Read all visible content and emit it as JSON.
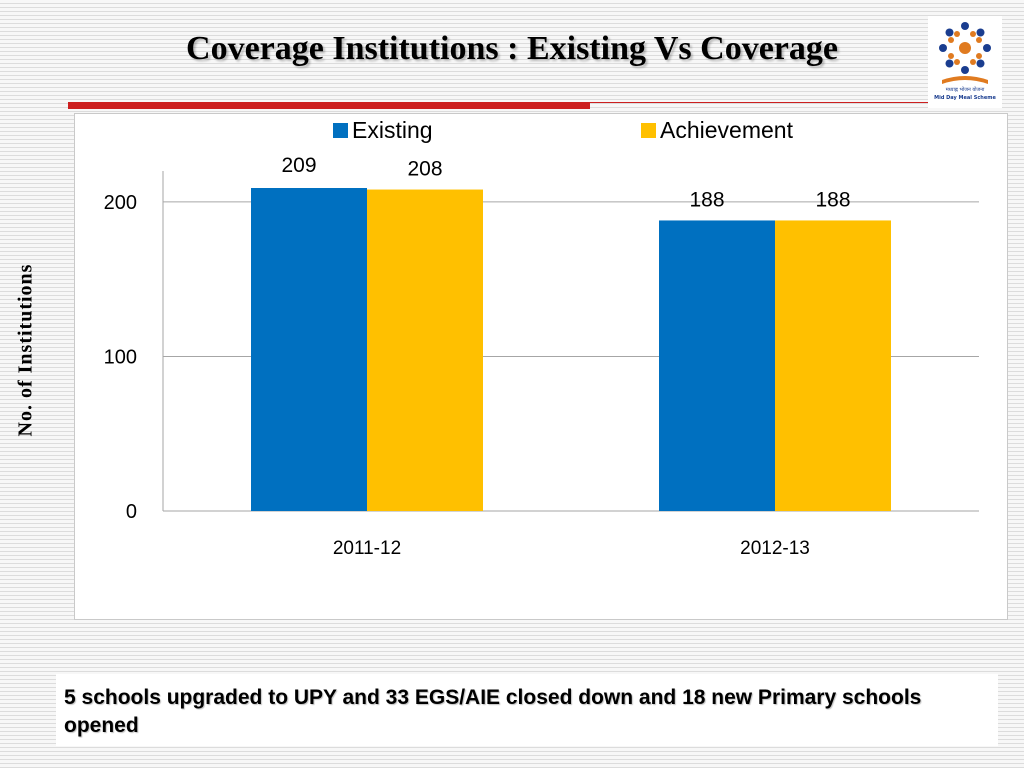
{
  "slide": {
    "title": "Coverage Institutions : Existing Vs Coverage",
    "note": "5 schools upgraded to UPY and 33 EGS/AIE closed down and 18 new Primary schools opened",
    "accent_color": "#cc1f1f"
  },
  "logo": {
    "line1": "मध्याह्न भोजन योजना",
    "line2": "Mid Day Meal Scheme"
  },
  "chart_data": {
    "type": "bar",
    "ylabel": "No. of Institutions",
    "xlabel": "",
    "title": "",
    "categories": [
      "2011-12",
      "2012-13"
    ],
    "series": [
      {
        "name": "Existing",
        "values": [
          209,
          188
        ],
        "color": "#0070c0"
      },
      {
        "name": "Achievement",
        "values": [
          208,
          188
        ],
        "color": "#ffc000"
      }
    ],
    "ylim": [
      0,
      220
    ],
    "yticks": [
      0,
      100,
      200
    ],
    "grid": true,
    "legend": "top",
    "data_labels": true
  }
}
